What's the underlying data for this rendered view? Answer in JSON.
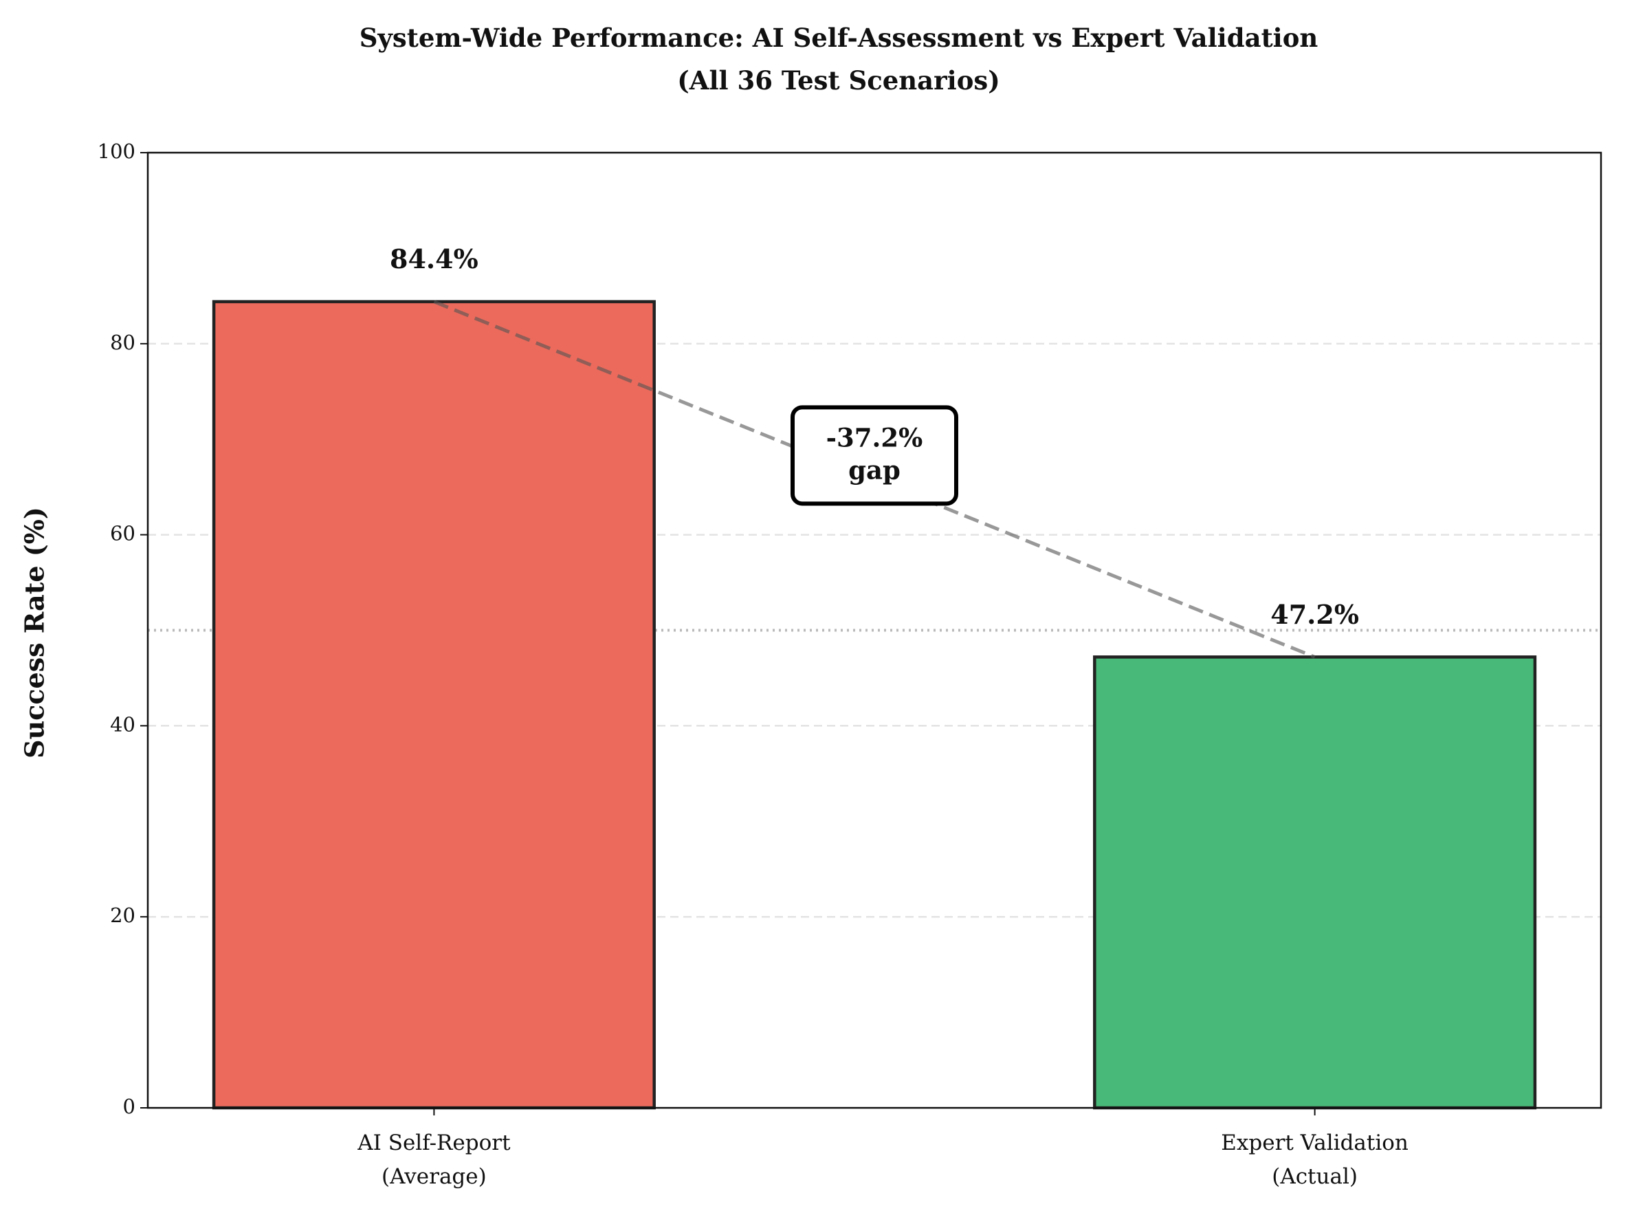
{
  "chart_data": {
    "type": "bar",
    "title": "System-Wide Performance: AI Self-Assessment vs Expert Validation\n(All 36 Test Scenarios)",
    "ylabel": "Success Rate (%)",
    "categories": [
      "AI Self-Report\n(Average)",
      "Expert Validation\n(Actual)"
    ],
    "values": [
      84.4,
      47.2
    ],
    "value_labels": [
      "84.4%",
      "47.2%"
    ],
    "colors": [
      "#eb6a5c",
      "#48b978"
    ],
    "ylim": [
      0,
      100
    ],
    "yticks": [
      0,
      20,
      40,
      60,
      80,
      100
    ],
    "grid": true,
    "reference_line": 50,
    "annotation": "-37.2%\ngap"
  }
}
